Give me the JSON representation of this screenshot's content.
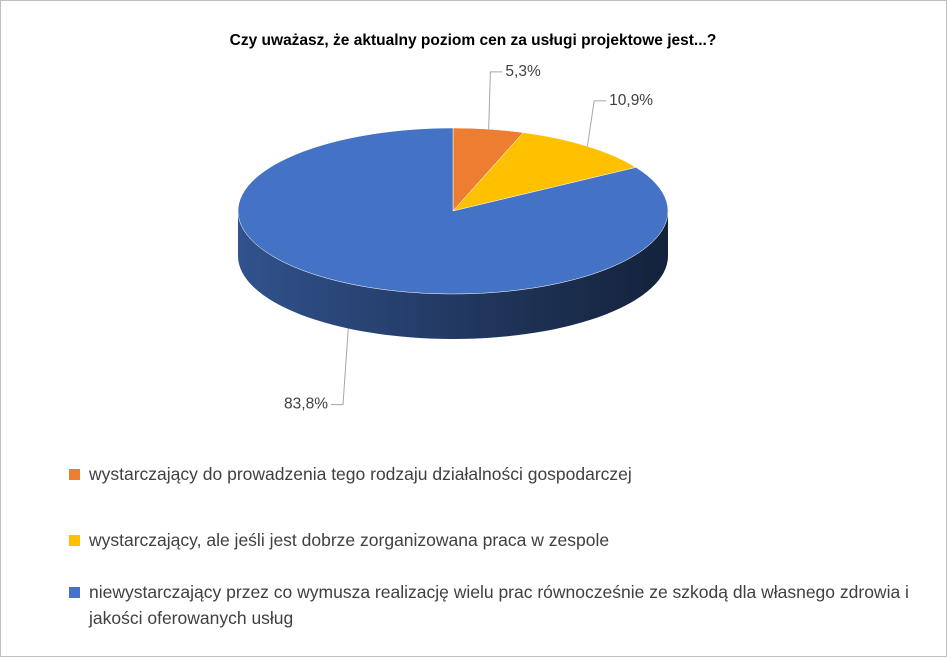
{
  "chart_data": {
    "type": "pie3d",
    "title": "Czy uważasz, że aktualny poziom cen za usługi projektowe jest...?",
    "series": [
      {
        "name": "wystarczający do prowadzenia tego rodzaju działalności gospodarczej",
        "color": "#ed7d31",
        "values": [
          5.3
        ],
        "value_labels": [
          "5,3%"
        ]
      },
      {
        "name": "wystarczający, ale jeśli jest dobrze zorganizowana praca w zespole",
        "color": "#ffc000",
        "values": [
          10.9
        ],
        "value_labels": [
          "10,9%"
        ]
      },
      {
        "name": "niewystarczający przez co wymusza realizację wielu prac równocześnie ze szkodą dla własnego zdrowia i jakości oferowanych usług",
        "color": "#4472c4",
        "values": [
          83.8
        ],
        "value_labels": [
          "83,8%"
        ]
      }
    ]
  }
}
